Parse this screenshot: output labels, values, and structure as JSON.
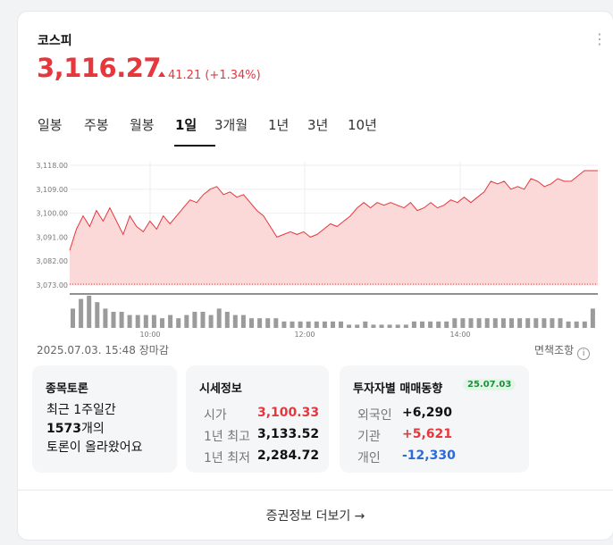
{
  "index": {
    "title": "코스피",
    "price": "3,116.27",
    "change": "41.21",
    "change_pct": "(+1.34%)",
    "color_up": "#e6373d",
    "color_down": "#2b6bd8"
  },
  "tabs": [
    {
      "label": "일봉",
      "active": false
    },
    {
      "label": "주봉",
      "active": false
    },
    {
      "label": "월봉",
      "active": false
    },
    {
      "label": "1일",
      "active": true
    },
    {
      "label": "3개월",
      "active": false
    },
    {
      "label": "1년",
      "active": false
    },
    {
      "label": "3년",
      "active": false
    },
    {
      "label": "10년",
      "active": false
    }
  ],
  "chart_data": {
    "type": "area",
    "y_ticks": [
      "3,118.00",
      "3,109.00",
      "3,100.00",
      "3,091.00",
      "3,082.00",
      "3,073.00"
    ],
    "x_ticks": [
      "10:00",
      "12:00",
      "14:00"
    ],
    "ylim": [
      3073,
      3118
    ],
    "series": [
      {
        "values": [
          3086,
          3094,
          3099,
          3095,
          3101,
          3097,
          3102,
          3097,
          3092,
          3099,
          3095,
          3093,
          3097,
          3094,
          3099,
          3096,
          3099,
          3102,
          3105,
          3104,
          3107,
          3109,
          3110,
          3107,
          3108,
          3106,
          3107,
          3104,
          3101,
          3099,
          3095,
          3091,
          3092,
          3093,
          3092,
          3093,
          3091,
          3092,
          3094,
          3096,
          3095,
          3097,
          3099,
          3102,
          3104,
          3102,
          3104,
          3103,
          3104,
          3103,
          3102,
          3104,
          3101,
          3102,
          3104,
          3102,
          3103,
          3105,
          3104,
          3106,
          3104,
          3106,
          3108,
          3112,
          3111,
          3112,
          3109,
          3110,
          3109,
          3113,
          3112,
          3110,
          3111,
          3113,
          3112,
          3112,
          3114,
          3116,
          3116,
          3116
        ],
        "color": "#e6373d"
      }
    ],
    "volume": [
      6,
      9,
      10,
      8,
      6,
      5,
      5,
      4,
      4,
      4,
      4,
      3,
      4,
      3,
      4,
      5,
      5,
      4,
      6,
      5,
      4,
      4,
      3,
      3,
      3,
      3,
      2,
      2,
      2,
      2,
      2,
      2,
      2,
      2,
      1,
      1,
      2,
      1,
      1,
      1,
      1,
      1,
      2,
      2,
      2,
      2,
      2,
      3,
      3,
      3,
      3,
      3,
      3,
      3,
      3,
      3,
      3,
      3,
      3,
      3,
      3,
      2,
      2,
      2,
      6
    ]
  },
  "timestamp": "2025.07.03. 15:48 장마감",
  "disclaimer": "면책조항",
  "discussion": {
    "title": "종목토론",
    "line1": "최근 1주일간",
    "count": "1573",
    "count_suffix": "개의",
    "line3": "토론이 올라왔어요"
  },
  "quote": {
    "title": "시세정보",
    "rows": [
      {
        "label": "시가",
        "value": "3,100.33"
      },
      {
        "label": "1년 최고",
        "value": "3,133.52"
      },
      {
        "label": "1년 최저",
        "value": "2,284.72"
      }
    ]
  },
  "investor": {
    "title": "투자자별 매매동향",
    "date_badge": "25.07.03",
    "rows": [
      {
        "label": "외국인",
        "value": "+6,290"
      },
      {
        "label": "기관",
        "value": "+5,621"
      },
      {
        "label": "개인",
        "value": "-12,330"
      }
    ]
  },
  "footer": {
    "more_label": "증권정보 더보기",
    "arrow": "→"
  }
}
